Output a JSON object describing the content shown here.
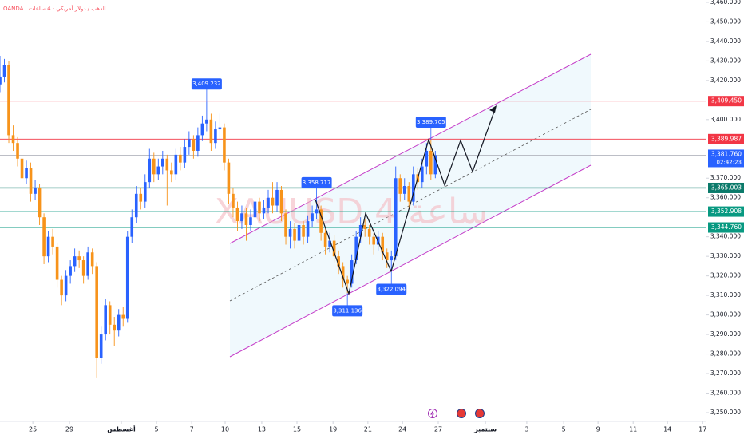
{
  "header": {
    "source": "OANDA",
    "description": "الذهب / دولار أمريكي · 4 ساعات"
  },
  "chart_data": {
    "type": "candlestick",
    "watermark": "XAUUSD 4 ساعة",
    "up_color": "#2962ff",
    "down_color": "#f7931a",
    "grid": false,
    "xlim": [
      0,
      241
    ],
    "ylim": [
      3245.5,
      3461.2
    ],
    "xticks": [
      {
        "value": 11.2,
        "label": "25"
      },
      {
        "value": 23.7,
        "label": "29"
      },
      {
        "value": 41.4,
        "label": "أغسطس"
      },
      {
        "value": 53.4,
        "label": "5"
      },
      {
        "value": 65.4,
        "label": "7"
      },
      {
        "value": 76.8,
        "label": "10"
      },
      {
        "value": 89.3,
        "label": "13"
      },
      {
        "value": 101.3,
        "label": "15"
      },
      {
        "value": 113.6,
        "label": "19"
      },
      {
        "value": 125.5,
        "label": "21"
      },
      {
        "value": 137.3,
        "label": "24"
      },
      {
        "value": 149.5,
        "label": "27"
      },
      {
        "value": 165.6,
        "label": "سبتمبر"
      },
      {
        "value": 179.7,
        "label": "3"
      },
      {
        "value": 192.3,
        "label": "5"
      },
      {
        "value": 204,
        "label": "9"
      },
      {
        "value": 216,
        "label": "11"
      },
      {
        "value": 227.7,
        "label": "14"
      },
      {
        "value": 239.7,
        "label": "17"
      }
    ],
    "yticks": [
      {
        "value": 3460,
        "label": "3,460.000"
      },
      {
        "value": 3450,
        "label": "3,450.000"
      },
      {
        "value": 3440,
        "label": "3,440.000"
      },
      {
        "value": 3430,
        "label": "3,430.000"
      },
      {
        "value": 3420,
        "label": "3,420.000"
      },
      {
        "value": 3400,
        "label": "3,400.000"
      },
      {
        "value": 3370,
        "label": "3,370.000"
      },
      {
        "value": 3360,
        "label": "3,360.000"
      },
      {
        "value": 3340,
        "label": "3,340.000"
      },
      {
        "value": 3330,
        "label": "3,330.000"
      },
      {
        "value": 3320,
        "label": "3,320.000"
      },
      {
        "value": 3310,
        "label": "3,310.000"
      },
      {
        "value": 3300,
        "label": "3,300.000"
      },
      {
        "value": 3290,
        "label": "3,290.000"
      },
      {
        "value": 3280,
        "label": "3,280.000"
      },
      {
        "value": 3270,
        "label": "3,270.000"
      },
      {
        "value": 3260,
        "label": "3,260.000"
      },
      {
        "value": 3250,
        "label": "3,250.000"
      }
    ],
    "candles": [
      [
        0,
        3418,
        3432.6,
        3414,
        3422
      ],
      [
        1.5,
        3422,
        3431,
        3419,
        3428
      ],
      [
        3,
        3428,
        3430,
        3388,
        3392
      ],
      [
        4.5,
        3392,
        3397,
        3384,
        3388
      ],
      [
        6,
        3388,
        3391,
        3376,
        3380
      ],
      [
        7.5,
        3380,
        3383,
        3366,
        3370
      ],
      [
        9,
        3370,
        3379,
        3367,
        3375
      ],
      [
        10.5,
        3375,
        3378,
        3358,
        3362
      ],
      [
        12,
        3362,
        3369,
        3359,
        3365
      ],
      [
        13.5,
        3365,
        3367,
        3346,
        3350
      ],
      [
        15,
        3350,
        3352,
        3326,
        3330
      ],
      [
        16.5,
        3330,
        3343,
        3327,
        3340
      ],
      [
        18,
        3340,
        3344,
        3331,
        3335
      ],
      [
        19.5,
        3335,
        3337,
        3314,
        3318
      ],
      [
        21,
        3318,
        3320,
        3305,
        3310
      ],
      [
        22.5,
        3310,
        3323,
        3307,
        3320
      ],
      [
        24,
        3320,
        3328,
        3316,
        3325
      ],
      [
        25.5,
        3325,
        3334,
        3322,
        3330
      ],
      [
        27,
        3330,
        3333,
        3324,
        3328
      ],
      [
        28.5,
        3328,
        3330,
        3316,
        3320
      ],
      [
        30,
        3320,
        3335,
        3318,
        3332
      ],
      [
        31.5,
        3332,
        3334,
        3321,
        3325
      ],
      [
        33,
        3325,
        3327,
        3268,
        3278
      ],
      [
        34.5,
        3278,
        3294,
        3275,
        3290
      ],
      [
        36,
        3290,
        3308,
        3287,
        3305
      ],
      [
        37.5,
        3305,
        3307,
        3290,
        3295
      ],
      [
        39,
        3295,
        3299,
        3284,
        3292
      ],
      [
        40.5,
        3292,
        3303,
        3289,
        3300
      ],
      [
        42,
        3300,
        3304,
        3294,
        3298
      ],
      [
        43.5,
        3298,
        3343,
        3296,
        3340
      ],
      [
        45,
        3340,
        3354,
        3337,
        3350
      ],
      [
        46.5,
        3350,
        3366,
        3347,
        3362
      ],
      [
        48,
        3362,
        3365,
        3354,
        3358
      ],
      [
        49.5,
        3358,
        3372,
        3355,
        3368
      ],
      [
        51,
        3368,
        3385,
        3365,
        3380
      ],
      [
        52.5,
        3380,
        3383,
        3368,
        3372
      ],
      [
        54,
        3372,
        3380,
        3369,
        3376
      ],
      [
        55.5,
        3376,
        3384,
        3372,
        3380
      ],
      [
        57,
        3380,
        3382,
        3356,
        3374
      ],
      [
        58.5,
        3374,
        3378,
        3368,
        3372
      ],
      [
        60,
        3372,
        3385,
        3369,
        3382
      ],
      [
        61.5,
        3382,
        3386,
        3374,
        3378
      ],
      [
        63,
        3378,
        3390,
        3375,
        3386
      ],
      [
        64.5,
        3386,
        3394,
        3382,
        3390
      ],
      [
        66,
        3390,
        3392,
        3380,
        3384
      ],
      [
        67.5,
        3384,
        3396,
        3381,
        3392
      ],
      [
        69,
        3392,
        3402,
        3389,
        3398
      ],
      [
        70.5,
        3398,
        3409.232,
        3394,
        3400
      ],
      [
        72,
        3400,
        3403,
        3384,
        3388
      ],
      [
        73.5,
        3388,
        3399,
        3385,
        3395
      ],
      [
        75,
        3395,
        3403,
        3390,
        3396
      ],
      [
        76.5,
        3396,
        3398,
        3374,
        3378
      ],
      [
        78,
        3378,
        3380,
        3357,
        3362
      ],
      [
        79.5,
        3362,
        3365,
        3350,
        3355
      ],
      [
        81,
        3355,
        3358,
        3343,
        3348
      ],
      [
        82.5,
        3348,
        3356,
        3344,
        3352
      ],
      [
        84,
        3352,
        3355,
        3338,
        3346
      ],
      [
        85.5,
        3346,
        3354,
        3343,
        3350
      ],
      [
        87,
        3350,
        3362,
        3347,
        3358
      ],
      [
        88.5,
        3358,
        3360,
        3348,
        3352
      ],
      [
        90,
        3352,
        3359,
        3349,
        3355
      ],
      [
        91.5,
        3355,
        3364,
        3352,
        3360
      ],
      [
        93,
        3360,
        3368,
        3352,
        3356
      ],
      [
        94.5,
        3356,
        3368,
        3353,
        3364
      ],
      [
        96,
        3364,
        3366,
        3348,
        3352
      ],
      [
        97.5,
        3352,
        3354,
        3336,
        3340
      ],
      [
        99,
        3340,
        3348,
        3334,
        3344
      ],
      [
        100.5,
        3344,
        3347,
        3334,
        3338
      ],
      [
        102,
        3338,
        3349,
        3335,
        3346
      ],
      [
        103.5,
        3346,
        3348,
        3336,
        3340
      ],
      [
        105,
        3340,
        3351,
        3337,
        3348
      ],
      [
        106.5,
        3348,
        3356,
        3345,
        3352
      ],
      [
        108,
        3352,
        3358.717,
        3349,
        3354
      ],
      [
        109.5,
        3354,
        3356,
        3338,
        3342
      ],
      [
        111,
        3342,
        3344,
        3331,
        3335
      ],
      [
        112.5,
        3335,
        3342,
        3332,
        3338
      ],
      [
        114,
        3338,
        3341,
        3327,
        3330
      ],
      [
        115.5,
        3330,
        3333,
        3321,
        3325
      ],
      [
        117,
        3325,
        3327,
        3314,
        3318
      ],
      [
        118.5,
        3318,
        3320,
        3311.136,
        3316
      ],
      [
        120,
        3316,
        3331,
        3314,
        3328
      ],
      [
        121.5,
        3328,
        3343,
        3326,
        3340
      ],
      [
        123,
        3340,
        3350,
        3337,
        3346
      ],
      [
        124.5,
        3346,
        3349,
        3340,
        3344
      ],
      [
        126,
        3344,
        3346,
        3336,
        3340
      ],
      [
        127.5,
        3340,
        3342,
        3331,
        3336
      ],
      [
        129,
        3336,
        3343,
        3333,
        3340
      ],
      [
        130.5,
        3340,
        3342,
        3328,
        3332
      ],
      [
        132,
        3332,
        3334,
        3324,
        3328
      ],
      [
        133.5,
        3328,
        3333,
        3322.094,
        3330
      ],
      [
        135,
        3330,
        3376,
        3328,
        3370
      ],
      [
        136.5,
        3370,
        3372,
        3358,
        3362
      ],
      [
        138,
        3362,
        3370,
        3359,
        3366
      ],
      [
        139.5,
        3366,
        3368,
        3355,
        3358
      ],
      [
        141,
        3358,
        3376,
        3356,
        3372
      ],
      [
        142.5,
        3372,
        3375,
        3364,
        3368
      ],
      [
        144,
        3368,
        3380,
        3365,
        3376
      ],
      [
        145.5,
        3376,
        3388,
        3372,
        3384
      ],
      [
        147,
        3384,
        3389.705,
        3369,
        3372
      ],
      [
        148.5,
        3372,
        3384,
        3370,
        3381.76
      ]
    ],
    "levels": [
      {
        "value": 3409.45,
        "label": "3,409.450",
        "color": "#f23645"
      },
      {
        "value": 3389.987,
        "label": "3,389.987",
        "color": "#f23645"
      },
      {
        "value": 3365.003,
        "label": "3,365.003",
        "color": "#0b7a6a"
      },
      {
        "value": 3352.908,
        "label": "3,352.908",
        "color": "#089981"
      },
      {
        "value": 3344.76,
        "label": "3,344.760",
        "color": "#089981"
      }
    ],
    "last_price": {
      "value": 3381.76,
      "label": "3,381.760",
      "countdown": "02:42:23",
      "color": "#2962ff"
    },
    "annotations": [
      {
        "x": 70.5,
        "value": 3409.232,
        "label": "3,409.232",
        "place": "above"
      },
      {
        "x": 108,
        "value": 3358.717,
        "label": "3,358.717",
        "place": "above"
      },
      {
        "x": 118.5,
        "value": 3311.136,
        "label": "3,311.136",
        "place": "below"
      },
      {
        "x": 133.5,
        "value": 3322.094,
        "label": "3,322.094",
        "place": "below"
      },
      {
        "x": 147,
        "value": 3389.705,
        "label": "3,389.705",
        "place": "above"
      }
    ]
  }
}
